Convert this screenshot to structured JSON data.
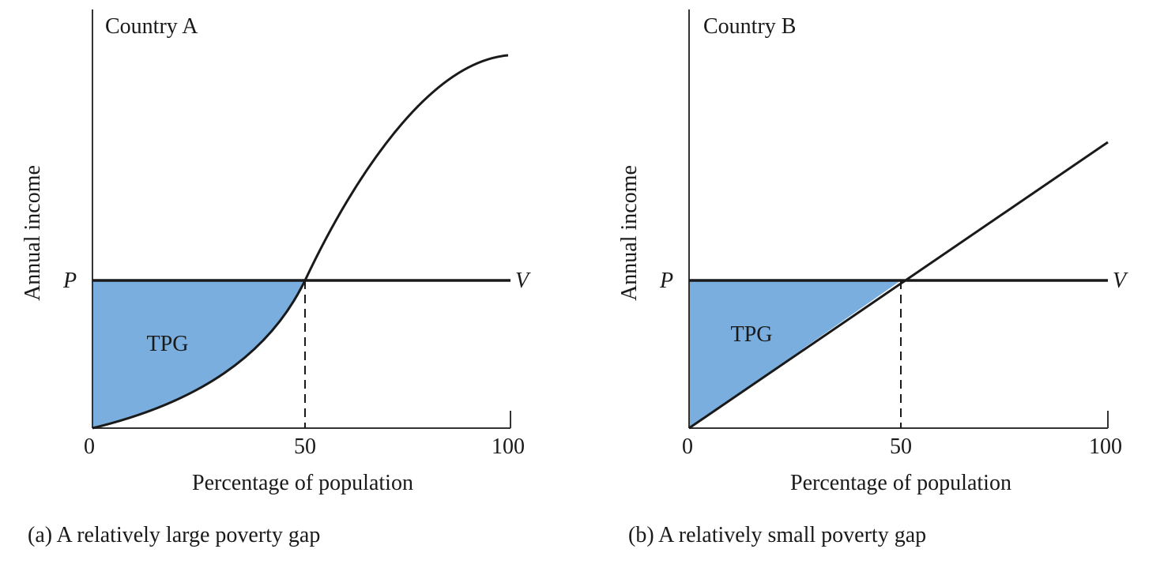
{
  "colors": {
    "fill": "#7aaede",
    "line": "#1a1a1a"
  },
  "chart_data": [
    {
      "type": "line",
      "title": "Country A",
      "caption": "(a) A relatively large poverty gap",
      "xlabel": "Percentage of population",
      "ylabel": "Annual income",
      "xlim": [
        0,
        100
      ],
      "x_ticks": [
        "0",
        "50",
        "100"
      ],
      "poverty_line_left_label": "P",
      "poverty_line_right_label": "V",
      "area_label": "TPG",
      "curve": "convex below poverty line up to 50%, S-shaped rising and flattening toward 100%",
      "crosses_poverty_line_at_x": 50
    },
    {
      "type": "line",
      "title": "Country B",
      "caption": "(b) A relatively small poverty gap",
      "xlabel": "Percentage of population",
      "ylabel": "Annual income",
      "xlim": [
        0,
        100
      ],
      "x_ticks": [
        "0",
        "50",
        "100"
      ],
      "poverty_line_left_label": "P",
      "poverty_line_right_label": "V",
      "area_label": "TPG",
      "curve": "straight line from origin",
      "crosses_poverty_line_at_x": 50
    }
  ]
}
